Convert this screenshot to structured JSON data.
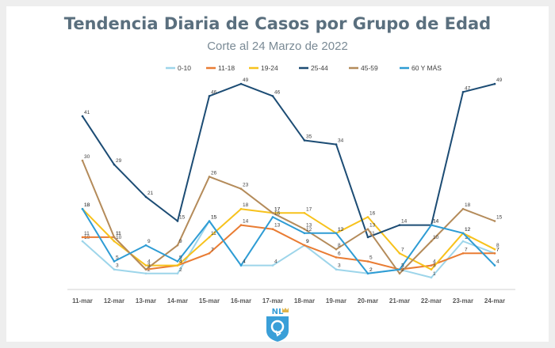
{
  "header": {
    "title": "Tendencia Diaria de Casos por Grupo de Edad",
    "subtitle": "Corte al 24 Marzo de 2022"
  },
  "logo": {
    "text": "NL",
    "icon": "state-shield-logo",
    "color": "#3a9fd8"
  },
  "chart_data": {
    "type": "line",
    "title": "Tendencia Diaria de Casos por Grupo de Edad",
    "subtitle": "Corte al 24 Marzo de 2022",
    "xlabel": "",
    "ylabel": "",
    "ylim": [
      0,
      52
    ],
    "grid": false,
    "legend_position": "top",
    "categories": [
      "11-mar",
      "12-mar",
      "13-mar",
      "14-mar",
      "15-mar",
      "16-mar",
      "17-mar",
      "18-mar",
      "19-mar",
      "20-mar",
      "21-mar",
      "22-mar",
      "23-mar",
      "24-mar"
    ],
    "series": [
      {
        "name": "0-10",
        "color": "#9dd5ea",
        "values": [
          10,
          3,
          2,
          2,
          15,
          4,
          4,
          9,
          3,
          2,
          3,
          1,
          10,
          7
        ]
      },
      {
        "name": "11-18",
        "color": "#e97c33",
        "values": [
          11,
          11,
          3,
          4,
          7,
          14,
          13,
          9,
          6,
          5,
          3,
          4,
          7,
          7
        ]
      },
      {
        "name": "19-24",
        "color": "#f7c21c",
        "values": [
          18,
          10,
          4,
          4,
          11,
          18,
          17,
          17,
          12,
          16,
          7,
          3,
          12,
          8
        ]
      },
      {
        "name": "25-44",
        "color": "#1c4c74",
        "values": [
          41,
          29,
          21,
          15,
          46,
          49,
          46,
          35,
          34,
          11,
          14,
          14,
          47,
          49
        ]
      },
      {
        "name": "45-59",
        "color": "#b48b5a",
        "values": [
          30,
          11,
          3,
          9,
          26,
          23,
          17,
          13,
          8,
          13,
          2,
          10,
          18,
          15
        ]
      },
      {
        "name": "60 Y MÁS",
        "color": "#2e9cd4",
        "values": [
          18,
          5,
          9,
          5,
          15,
          4,
          16,
          12,
          12,
          2,
          3,
          14,
          12,
          4
        ]
      }
    ]
  }
}
